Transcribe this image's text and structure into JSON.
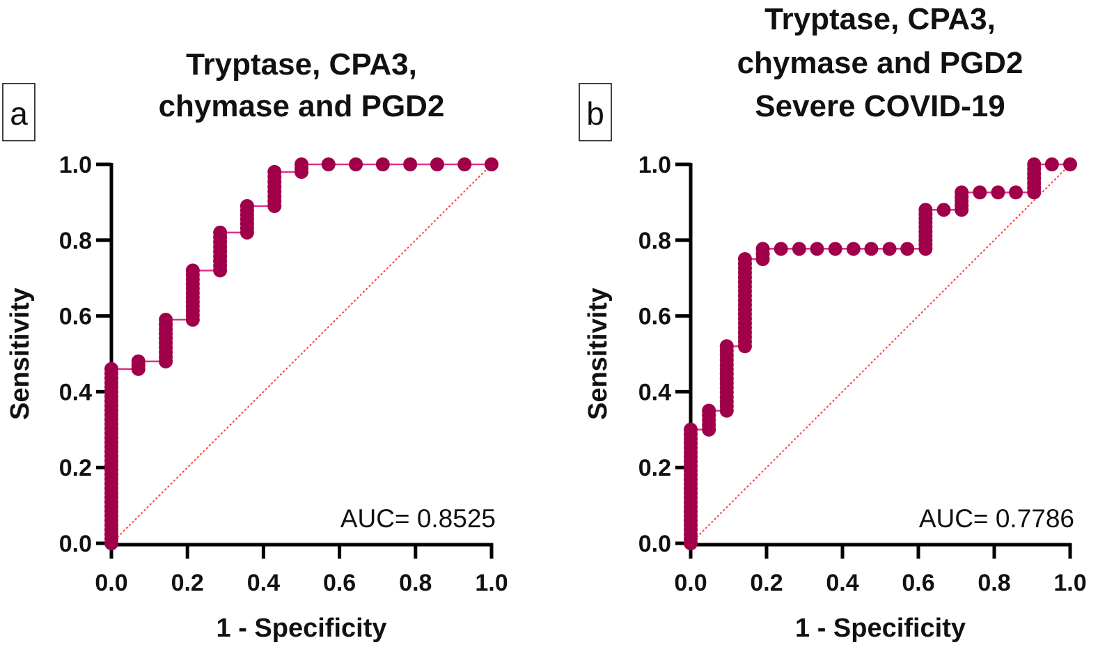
{
  "colors": {
    "marker": "#a0004a",
    "line": "#e0338a",
    "reference": "#ff4040",
    "axis": "#000000"
  },
  "chart_data": [
    {
      "type": "scatter",
      "panel_label": "a",
      "title": [
        "Tryptase, CPA3,",
        "chymase and PGD2"
      ],
      "xlabel": "1 - Specificity",
      "ylabel": "Sensitivity",
      "xlim": [
        0,
        1
      ],
      "ylim": [
        0,
        1
      ],
      "xticks": [
        "0.0",
        "0.2",
        "0.4",
        "0.6",
        "0.8",
        "1.0"
      ],
      "yticks": [
        "0.0",
        "0.2",
        "0.4",
        "0.6",
        "0.8",
        "1.0"
      ],
      "annotation": "AUC= 0.8525",
      "auc": 0.8525,
      "reference_line": [
        [
          0,
          0
        ],
        [
          1,
          1
        ]
      ],
      "roc_steps": [
        {
          "x": 0.0,
          "y_from": 0.0,
          "y_to": 0.46
        },
        {
          "x": 0.071,
          "y_from": 0.46,
          "y_to": 0.48
        },
        {
          "x": 0.143,
          "y_from": 0.48,
          "y_to": 0.59
        },
        {
          "x": 0.214,
          "y_from": 0.59,
          "y_to": 0.72
        },
        {
          "x": 0.286,
          "y_from": 0.72,
          "y_to": 0.82
        },
        {
          "x": 0.357,
          "y_from": 0.82,
          "y_to": 0.89
        },
        {
          "x": 0.429,
          "y_from": 0.89,
          "y_to": 0.98
        },
        {
          "x": 0.5,
          "y_from": 0.98,
          "y_to": 1.0
        },
        {
          "x": 0.571,
          "y_from": 1.0,
          "y_to": 1.0
        },
        {
          "x": 0.643,
          "y_from": 1.0,
          "y_to": 1.0
        },
        {
          "x": 0.714,
          "y_from": 1.0,
          "y_to": 1.0
        },
        {
          "x": 0.786,
          "y_from": 1.0,
          "y_to": 1.0
        },
        {
          "x": 0.857,
          "y_from": 1.0,
          "y_to": 1.0
        },
        {
          "x": 0.929,
          "y_from": 1.0,
          "y_to": 1.0
        },
        {
          "x": 1.0,
          "y_from": 1.0,
          "y_to": 1.0
        }
      ]
    },
    {
      "type": "scatter",
      "panel_label": "b",
      "title": [
        "Tryptase, CPA3,",
        "chymase and PGD2",
        "Severe COVID-19"
      ],
      "xlabel": "1 - Specificity",
      "ylabel": "Sensitivity",
      "xlim": [
        0,
        1
      ],
      "ylim": [
        0,
        1
      ],
      "xticks": [
        "0.0",
        "0.2",
        "0.4",
        "0.6",
        "0.8",
        "1.0"
      ],
      "yticks": [
        "0.0",
        "0.2",
        "0.4",
        "0.6",
        "0.8",
        "1.0"
      ],
      "annotation": "AUC= 0.7786",
      "auc": 0.7786,
      "reference_line": [
        [
          0,
          0
        ],
        [
          1,
          1
        ]
      ],
      "roc_steps": [
        {
          "x": 0.0,
          "y_from": 0.0,
          "y_to": 0.3
        },
        {
          "x": 0.048,
          "y_from": 0.3,
          "y_to": 0.35
        },
        {
          "x": 0.095,
          "y_from": 0.35,
          "y_to": 0.52
        },
        {
          "x": 0.143,
          "y_from": 0.52,
          "y_to": 0.75
        },
        {
          "x": 0.19,
          "y_from": 0.75,
          "y_to": 0.777
        },
        {
          "x": 0.238,
          "y_from": 0.777,
          "y_to": 0.777
        },
        {
          "x": 0.286,
          "y_from": 0.777,
          "y_to": 0.777
        },
        {
          "x": 0.333,
          "y_from": 0.777,
          "y_to": 0.777
        },
        {
          "x": 0.381,
          "y_from": 0.777,
          "y_to": 0.777
        },
        {
          "x": 0.429,
          "y_from": 0.777,
          "y_to": 0.777
        },
        {
          "x": 0.476,
          "y_from": 0.777,
          "y_to": 0.777
        },
        {
          "x": 0.524,
          "y_from": 0.777,
          "y_to": 0.777
        },
        {
          "x": 0.571,
          "y_from": 0.777,
          "y_to": 0.777
        },
        {
          "x": 0.619,
          "y_from": 0.777,
          "y_to": 0.88
        },
        {
          "x": 0.667,
          "y_from": 0.88,
          "y_to": 0.88
        },
        {
          "x": 0.714,
          "y_from": 0.88,
          "y_to": 0.926
        },
        {
          "x": 0.762,
          "y_from": 0.926,
          "y_to": 0.926
        },
        {
          "x": 0.81,
          "y_from": 0.926,
          "y_to": 0.926
        },
        {
          "x": 0.857,
          "y_from": 0.926,
          "y_to": 0.926
        },
        {
          "x": 0.905,
          "y_from": 0.926,
          "y_to": 1.0
        },
        {
          "x": 0.952,
          "y_from": 1.0,
          "y_to": 1.0
        },
        {
          "x": 1.0,
          "y_from": 1.0,
          "y_to": 1.0
        }
      ]
    }
  ]
}
